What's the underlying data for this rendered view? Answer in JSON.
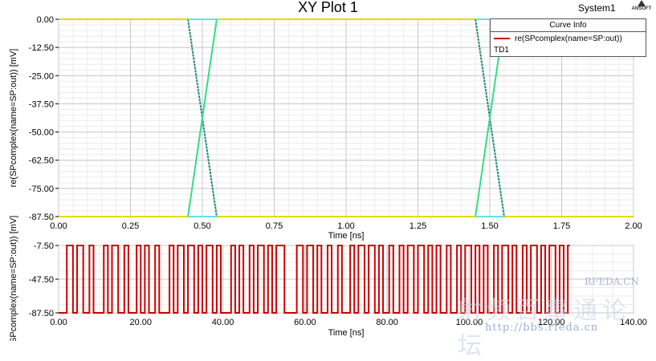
{
  "header": {
    "title": "XY Plot 1",
    "project": "System1",
    "brand": "ANSOFT"
  },
  "legend": {
    "heading": "Curve Info",
    "entry": "re(SPcomplex(name=SP:out))",
    "sub": "TD1",
    "color": "#cc0000"
  },
  "watermark": {
    "site": "RFEDA.CN",
    "url": "http://bbs.rfeda.cn",
    "chars": "射频百事通论坛"
  },
  "chart_data": [
    {
      "type": "line",
      "title": "XY Plot 1",
      "xlabel": "Time [ns]",
      "ylabel": "re(SPcomplex(name=SP:out)) [mV]",
      "xlim": [
        0.0,
        2.0
      ],
      "ylim": [
        -87.5,
        0.0
      ],
      "x_ticks": [
        "0.00",
        "0.25",
        "0.50",
        "0.75",
        "1.00",
        "1.25",
        "1.50",
        "1.75",
        "2.00"
      ],
      "y_ticks": [
        "0.00",
        "-12.50",
        "-25.00",
        "-37.50",
        "-50.00",
        "-62.50",
        "-75.00",
        "-87.50"
      ],
      "grid": true,
      "colors": {
        "rail": "#e6d800",
        "rise": "#33dd88",
        "fall": "#1f8a78"
      },
      "series": [
        {
          "x": [
            0.0,
            0.45,
            0.55,
            1.45,
            1.55,
            2.0
          ],
          "y": [
            0.0,
            0.0,
            0.0,
            0.0,
            0.0,
            0.0
          ]
        },
        {
          "x": [
            0.0,
            0.45,
            0.55,
            1.45,
            1.55,
            2.0
          ],
          "y": [
            -87.5,
            -87.5,
            -87.5,
            -87.5,
            -87.5,
            -87.5
          ]
        },
        {
          "x": [
            0.45,
            0.55
          ],
          "y": [
            0.0,
            -87.5
          ]
        },
        {
          "x": [
            0.45,
            0.55
          ],
          "y": [
            -87.5,
            0.0
          ]
        },
        {
          "x": [
            1.45,
            1.55
          ],
          "y": [
            0.0,
            -87.5
          ]
        },
        {
          "x": [
            1.45,
            1.55
          ],
          "y": [
            -87.5,
            0.0
          ]
        }
      ]
    },
    {
      "type": "line",
      "title": "",
      "xlabel": "Time [ns]",
      "ylabel": "re(SPcomplex(name=SP:out)) [mV]",
      "xlim": [
        0.0,
        140.0
      ],
      "ylim": [
        -87.5,
        -7.5
      ],
      "x_ticks": [
        "0.00",
        "20.00",
        "40.00",
        "60.00",
        "80.00",
        "100.00",
        "120.00",
        "140.00"
      ],
      "y_ticks": [
        "-7.50",
        "-47.50",
        "-87.50"
      ],
      "grid": true,
      "series": [
        {
          "name": "re(SPcomplex(name=SP:out))",
          "color": "#cc0000",
          "high": -7.5,
          "low": -87.5,
          "transitions": [
            2.0,
            3.5,
            4.5,
            6.0,
            7.5,
            8.5,
            11.0,
            12.0,
            13.0,
            14.5,
            16.0,
            17.0,
            19.0,
            20.0,
            21.0,
            22.0,
            23.5,
            24.5,
            27.0,
            28.0,
            29.0,
            30.5,
            31.5,
            33.0,
            34.0,
            35.0,
            36.0,
            37.5,
            38.5,
            39.5,
            42.0,
            43.0,
            44.0,
            45.0,
            46.5,
            47.5,
            48.5,
            50.0,
            51.0,
            52.0,
            53.0,
            55.0,
            58.0,
            59.5,
            60.5,
            62.0,
            63.0,
            64.0,
            65.5,
            66.5,
            68.0,
            69.0,
            71.0,
            72.0,
            73.0,
            74.5,
            75.5,
            77.0,
            78.0,
            79.0,
            80.5,
            81.5,
            83.0,
            84.0,
            85.0,
            86.5,
            87.5,
            89.0,
            90.0,
            91.0,
            92.0,
            93.0,
            94.5,
            95.5,
            97.0,
            98.0,
            99.0,
            100.5,
            101.5,
            102.5,
            103.5,
            104.5,
            106.0,
            107.0,
            108.0,
            109.5,
            110.5,
            111.5,
            113.0,
            114.0,
            115.0,
            116.5,
            117.5,
            118.5,
            119.5,
            121.0,
            122.0,
            123.0,
            124.0
          ],
          "start": "low",
          "end_x": 124.5
        }
      ]
    }
  ]
}
